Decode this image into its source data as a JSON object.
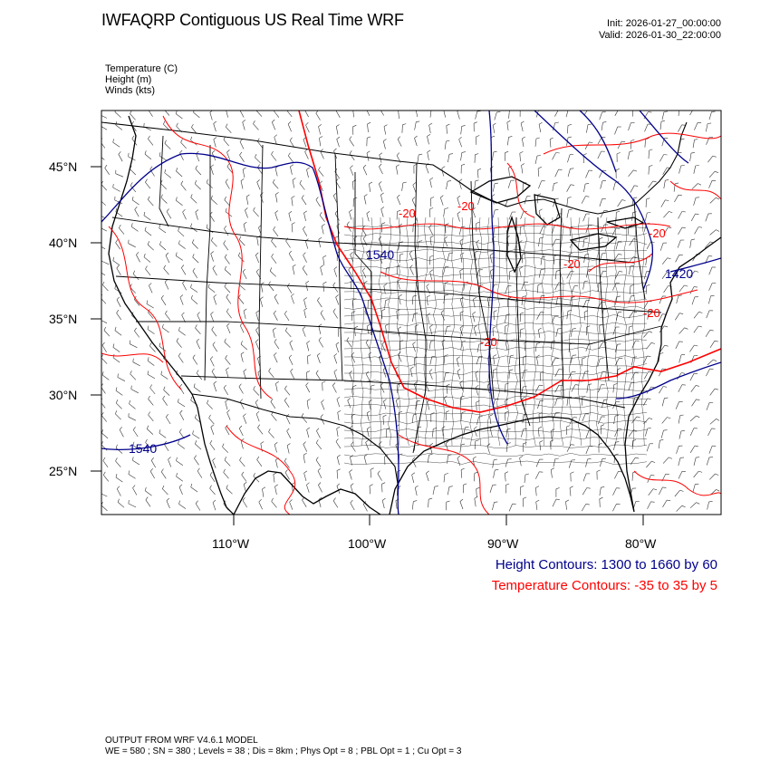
{
  "header": {
    "title": "IWFAQRP Contiguous US Real Time WRF",
    "init": "Init: 2026-01-27_00:00:00",
    "valid": "Valid: 2026-01-30_22:00:00"
  },
  "fields_legend": {
    "temperature": "Temperature   (C)",
    "height": "Height   (m)",
    "winds": "Winds   (kts)"
  },
  "axes": {
    "lat_ticks": [
      "45°N",
      "40°N",
      "35°N",
      "30°N",
      "25°N"
    ],
    "lon_ticks": [
      "110°W",
      "100°W",
      "90°W",
      "80°W"
    ]
  },
  "contour_labels": {
    "height": [
      "1540",
      "1540",
      "1420"
    ],
    "temperature": [
      "-20",
      "-20",
      "-20",
      "-20",
      "-20",
      "-20"
    ]
  },
  "contour_info": {
    "height": "Height Contours: 1300 to 1660 by 60",
    "temperature": "Temperature Contours: -35 to 35 by 5"
  },
  "colors": {
    "height": "#00008b",
    "temperature": "#ff0000",
    "borders": "#000000"
  },
  "model": {
    "title": "OUTPUT FROM WRF V4.6.1 MODEL",
    "info": "WE = 580 ; SN = 380 ; Levels = 38 ; Dis = 8km ; Phys Opt = 8 ; PBL Opt = 1 ; Cu Opt = 3"
  }
}
